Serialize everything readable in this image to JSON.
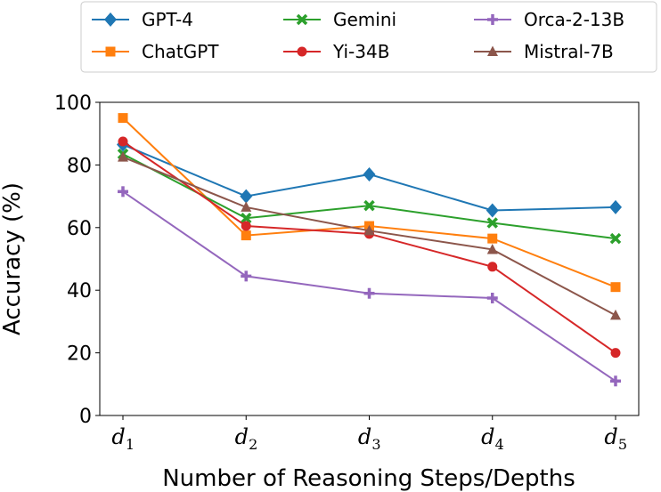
{
  "chart_data": {
    "type": "line",
    "title": "",
    "xlabel": "Number of Reasoning Steps/Depths",
    "ylabel": "Accuracy (%)",
    "ylim": [
      0,
      100
    ],
    "yticks": [
      "0",
      "20",
      "40",
      "60",
      "80",
      "100"
    ],
    "categories": [
      {
        "main": "d",
        "sub": "1"
      },
      {
        "main": "d",
        "sub": "2"
      },
      {
        "main": "d",
        "sub": "3"
      },
      {
        "main": "d",
        "sub": "4"
      },
      {
        "main": "d",
        "sub": "5"
      }
    ],
    "legend_position": "top",
    "series": [
      {
        "name": "GPT-4",
        "color": "#1f77b4",
        "marker": "diamond",
        "values": [
          86.5,
          70.0,
          77.0,
          65.5,
          66.5
        ]
      },
      {
        "name": "ChatGPT",
        "color": "#ff7f0e",
        "marker": "square",
        "values": [
          95.0,
          57.5,
          60.5,
          56.5,
          41.0
        ]
      },
      {
        "name": "Gemini",
        "color": "#2ca02c",
        "marker": "x",
        "values": [
          83.5,
          63.0,
          67.0,
          61.5,
          56.5
        ]
      },
      {
        "name": "Yi-34B",
        "color": "#d62728",
        "marker": "circle",
        "values": [
          87.5,
          60.5,
          58.0,
          47.5,
          20.0
        ]
      },
      {
        "name": "Orca-2-13B",
        "color": "#9467bd",
        "marker": "plus",
        "values": [
          71.5,
          44.5,
          39.0,
          37.5,
          11.0
        ]
      },
      {
        "name": "Mistral-7B",
        "color": "#8c564b",
        "marker": "triangle",
        "values": [
          82.5,
          66.5,
          59.0,
          53.0,
          32.0
        ]
      }
    ]
  }
}
